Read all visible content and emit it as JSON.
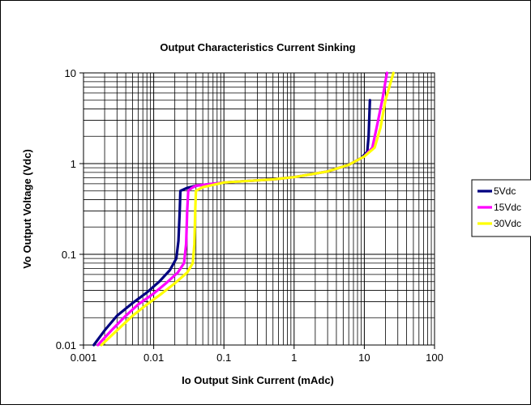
{
  "colors": {
    "background": "#ffffff",
    "frame": "#000000",
    "grid": "#000000"
  },
  "chart_data": {
    "type": "line",
    "title": "Output Characteristics Current Sinking",
    "xlabel": "Io  Output Sink Current (mAdc)",
    "ylabel": "Vo  Output Voltage (Vdc)",
    "x_scale": "log",
    "y_scale": "log",
    "xlim": [
      0.001,
      100
    ],
    "ylim": [
      0.01,
      10
    ],
    "x_ticks": [
      "0.001",
      "0.01",
      "0.1",
      "1",
      "10",
      "100"
    ],
    "y_ticks": [
      "0.01",
      "0.1",
      "1",
      "10"
    ],
    "grid": true,
    "legend_position": "right",
    "series": [
      {
        "name": "5Vdc",
        "color": "#000080",
        "points": [
          [
            0.0014,
            0.01
          ],
          [
            0.002,
            0.0145
          ],
          [
            0.003,
            0.021
          ],
          [
            0.005,
            0.029
          ],
          [
            0.008,
            0.038
          ],
          [
            0.012,
            0.05
          ],
          [
            0.017,
            0.067
          ],
          [
            0.021,
            0.09
          ],
          [
            0.0225,
            0.14
          ],
          [
            0.0235,
            0.3
          ],
          [
            0.024,
            0.5
          ],
          [
            0.03,
            0.54
          ],
          [
            0.04,
            0.57
          ],
          [
            0.1,
            0.62
          ],
          [
            0.5,
            0.67
          ],
          [
            1,
            0.71
          ],
          [
            3,
            0.82
          ],
          [
            6,
            0.97
          ],
          [
            9,
            1.15
          ],
          [
            11,
            1.35
          ],
          [
            11.5,
            2.0
          ],
          [
            12,
            5.0
          ]
        ]
      },
      {
        "name": "15Vdc",
        "color": "#ff00ff",
        "points": [
          [
            0.0016,
            0.01
          ],
          [
            0.0025,
            0.0145
          ],
          [
            0.004,
            0.021
          ],
          [
            0.006,
            0.028
          ],
          [
            0.01,
            0.037
          ],
          [
            0.015,
            0.048
          ],
          [
            0.022,
            0.063
          ],
          [
            0.027,
            0.08
          ],
          [
            0.029,
            0.13
          ],
          [
            0.03,
            0.3
          ],
          [
            0.031,
            0.5
          ],
          [
            0.035,
            0.54
          ],
          [
            0.04,
            0.57
          ],
          [
            0.1,
            0.62
          ],
          [
            0.5,
            0.67
          ],
          [
            1,
            0.71
          ],
          [
            3,
            0.82
          ],
          [
            6,
            0.97
          ],
          [
            10,
            1.2
          ],
          [
            13,
            1.5
          ],
          [
            15,
            2.5
          ],
          [
            18,
            5.0
          ],
          [
            21,
            10
          ]
        ]
      },
      {
        "name": "30Vdc",
        "color": "#ffff00",
        "points": [
          [
            0.0018,
            0.01
          ],
          [
            0.003,
            0.0145
          ],
          [
            0.005,
            0.021
          ],
          [
            0.008,
            0.028
          ],
          [
            0.013,
            0.037
          ],
          [
            0.02,
            0.048
          ],
          [
            0.03,
            0.063
          ],
          [
            0.036,
            0.08
          ],
          [
            0.038,
            0.13
          ],
          [
            0.039,
            0.3
          ],
          [
            0.04,
            0.5
          ],
          [
            0.05,
            0.55
          ],
          [
            0.1,
            0.62
          ],
          [
            0.5,
            0.67
          ],
          [
            1,
            0.71
          ],
          [
            3,
            0.82
          ],
          [
            6,
            0.97
          ],
          [
            10,
            1.2
          ],
          [
            14,
            1.5
          ],
          [
            17,
            2.5
          ],
          [
            20,
            5.0
          ],
          [
            26,
            10
          ]
        ]
      }
    ]
  }
}
